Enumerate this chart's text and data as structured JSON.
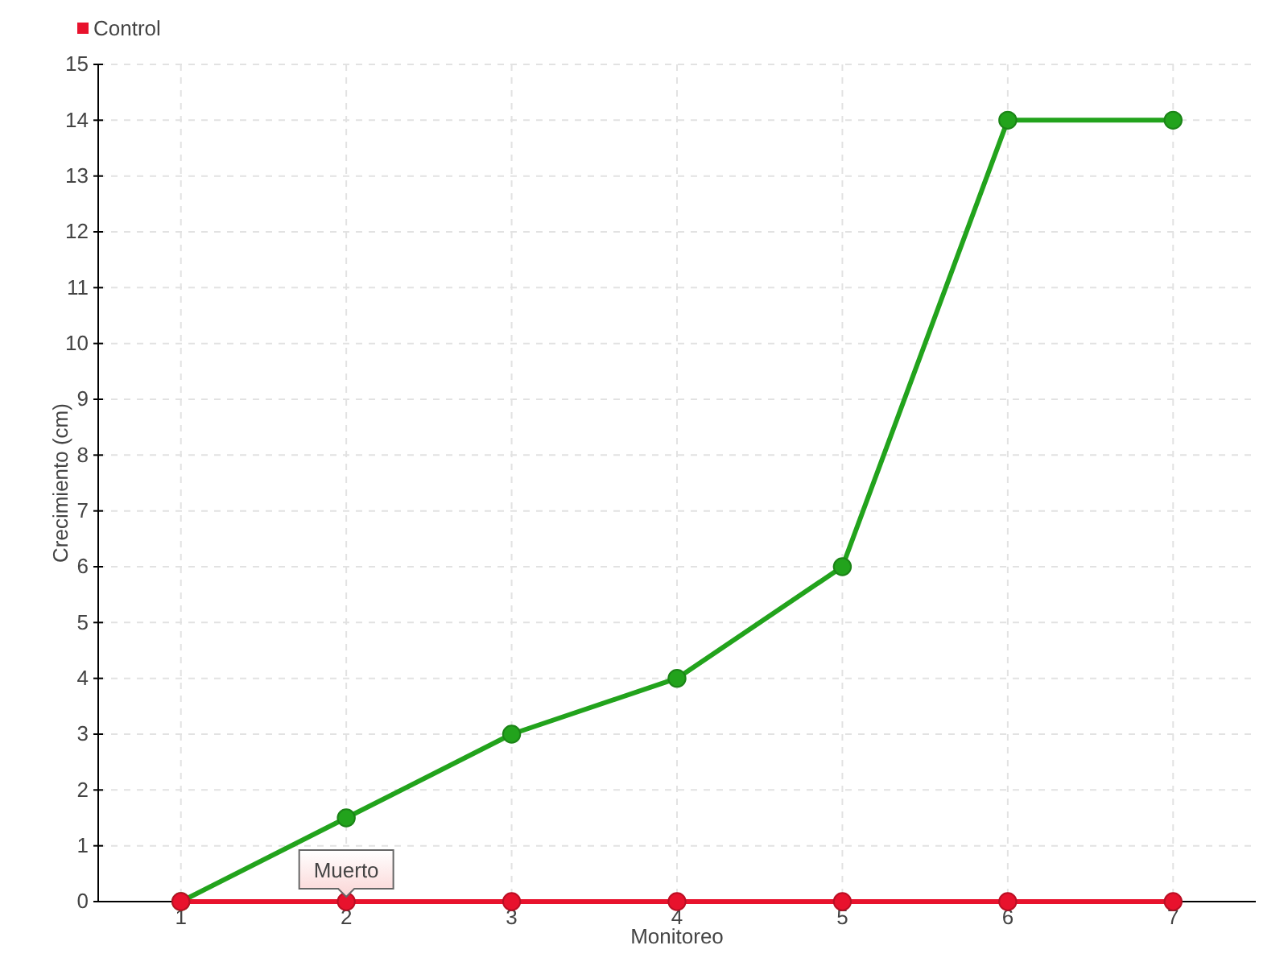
{
  "chart_data": {
    "type": "line",
    "xlabel": "Monitoreo",
    "ylabel": "Crecimiento (cm)",
    "x": [
      1,
      2,
      3,
      4,
      5,
      6,
      7
    ],
    "xlim": [
      0.5,
      7.5
    ],
    "xticks": [
      1,
      2,
      3,
      4,
      5,
      6,
      7
    ],
    "ylim": [
      0,
      15
    ],
    "yticks": [
      0,
      1,
      2,
      3,
      4,
      5,
      6,
      7,
      8,
      9,
      10,
      11,
      12,
      13,
      14,
      15
    ],
    "grid": true,
    "legend": "top left",
    "marker": "circle",
    "line_style": "solid",
    "series": [
      {
        "color": "#22a31c",
        "values": [
          0,
          1.5,
          3,
          4,
          6,
          14,
          14
        ]
      },
      {
        "name": "Control",
        "color": "#e8122d",
        "values": [
          0,
          0,
          0,
          0,
          0,
          0,
          0
        ]
      }
    ],
    "annotations": [
      {
        "text": "Muerto",
        "x": 2,
        "y": 0
      }
    ]
  }
}
